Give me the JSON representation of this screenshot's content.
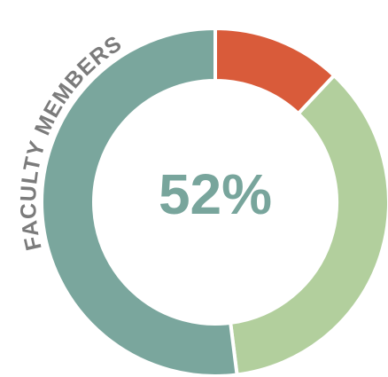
{
  "chart_data": {
    "type": "donut",
    "title": "FACULTY MEMBERS",
    "center_label": "52%",
    "values": [
      12,
      36,
      52
    ],
    "colors": [
      "#d95b3a",
      "#b2cf9d",
      "#7aa69d"
    ]
  }
}
